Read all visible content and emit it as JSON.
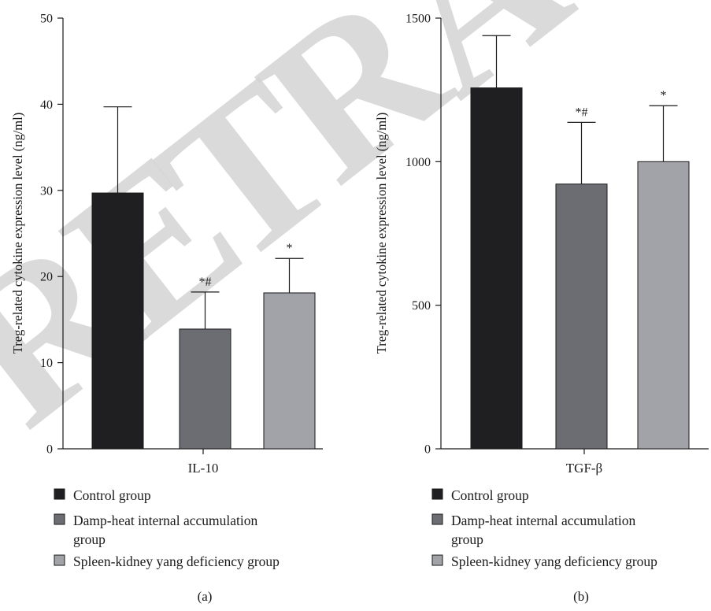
{
  "watermark": "RETRACTED",
  "colors": {
    "Control group": "#1f1f21",
    "Damp-heat internal accumulation group": "#6c6d72",
    "Spleen-kidney yang deficiency group": "#a2a3a8"
  },
  "chart_data": [
    {
      "type": "bar",
      "panel_label": "(a)",
      "categories": [
        "IL-10"
      ],
      "ylabel": "Treg-related cytokine expression level (ng/ml)",
      "ylim": [
        0,
        50
      ],
      "yticks": [
        0,
        10,
        20,
        30,
        40,
        50
      ],
      "series": [
        {
          "name": "Control group",
          "values": [
            29.7
          ],
          "error": [
            10.0
          ],
          "annotation": ""
        },
        {
          "name": "Damp-heat internal accumulation group",
          "values": [
            13.9
          ],
          "error": [
            4.3
          ],
          "annotation": "*#"
        },
        {
          "name": "Spleen-kidney yang deficiency group",
          "values": [
            18.1
          ],
          "error": [
            4.0
          ],
          "annotation": "*"
        }
      ],
      "legend": [
        {
          "label": "Control group",
          "lines": [
            "Control group"
          ]
        },
        {
          "label": "Damp-heat internal accumulation group",
          "lines": [
            "Damp-heat internal accumulation",
            "group"
          ]
        },
        {
          "label": "Spleen-kidney yang deficiency group",
          "lines": [
            "Spleen-kidney yang deficiency group"
          ]
        }
      ],
      "legend_position": "bottom"
    },
    {
      "type": "bar",
      "panel_label": "(b)",
      "categories": [
        "TGF-β"
      ],
      "ylabel": "Treg-related cytokine expression level (ng/ml)",
      "ylim": [
        0,
        1500
      ],
      "yticks": [
        0,
        500,
        1000,
        1500
      ],
      "series": [
        {
          "name": "Control group",
          "values": [
            1257
          ],
          "error": [
            182
          ],
          "annotation": ""
        },
        {
          "name": "Damp-heat internal accumulation group",
          "values": [
            922
          ],
          "error": [
            215
          ],
          "annotation": "*#"
        },
        {
          "name": "Spleen-kidney yang deficiency group",
          "values": [
            1000
          ],
          "error": [
            195
          ],
          "annotation": "*"
        }
      ],
      "legend": [
        {
          "label": "Control group",
          "lines": [
            "Control group"
          ]
        },
        {
          "label": "Damp-heat internal accumulation group",
          "lines": [
            "Damp-heat internal accumulation",
            "group"
          ]
        },
        {
          "label": "Spleen-kidney yang deficiency group",
          "lines": [
            "Spleen-kidney yang deficiency group"
          ]
        }
      ],
      "legend_position": "bottom"
    }
  ]
}
